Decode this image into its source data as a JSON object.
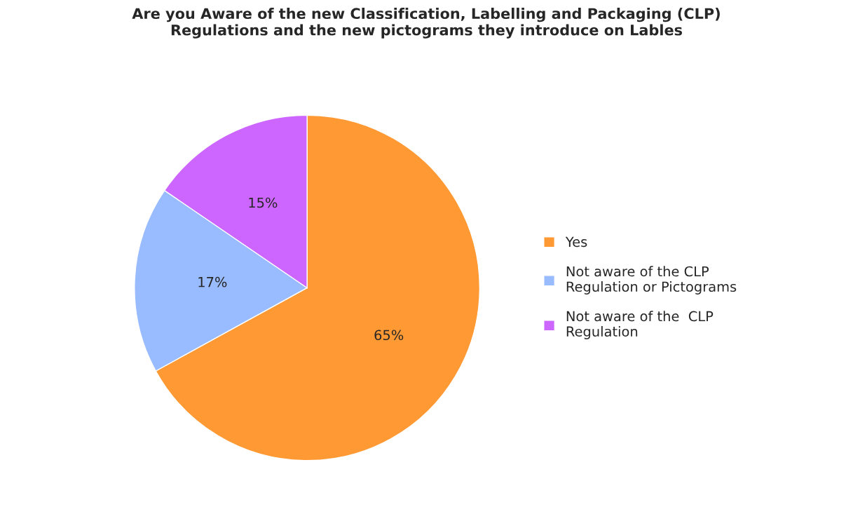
{
  "chart_data": {
    "type": "pie",
    "title": "Are you Aware of the new Classification, Labelling and Packaging (CLP)\nRegulations and the new pictograms they introduce on Lables",
    "categories": [
      "Yes",
      "Not aware of the CLP\nRegulation or Pictograms",
      "Not aware of the  CLP\nRegulation"
    ],
    "values": [
      65,
      17,
      15
    ],
    "colors": [
      "#ff9933",
      "#99bbff",
      "#cc66ff"
    ],
    "value_labels": [
      "65%",
      "17%",
      "15%"
    ],
    "legend": "right"
  }
}
